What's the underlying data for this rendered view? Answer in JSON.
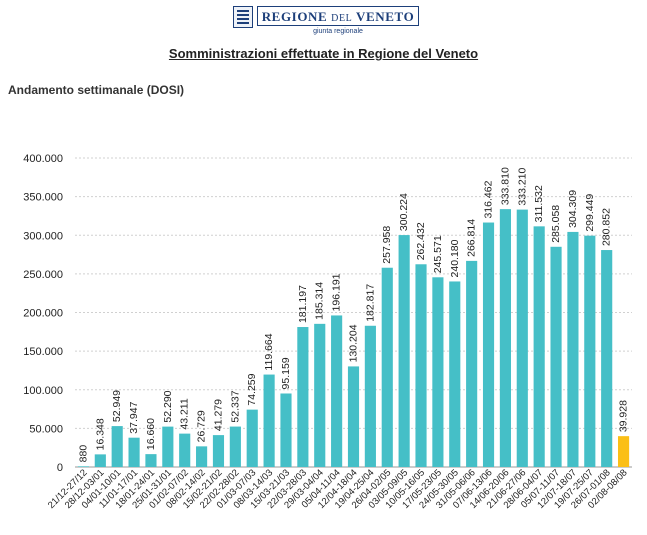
{
  "header": {
    "logo_name_main": "REGIONE",
    "logo_name_small": "DEL",
    "logo_name_end": "VENETO",
    "logo_subtitle": "giunta regionale",
    "page_title": "Somministrazioni effettuate in  Regione del Veneto"
  },
  "section_title": "Andamento settimanale (DOSI)",
  "colors": {
    "bar": "#45bfc7",
    "highlight": "#fbbf16",
    "grid": "#d0d0d0"
  },
  "chart_data": {
    "type": "bar",
    "title": "Andamento settimanale (DOSI)",
    "xlabel": "",
    "ylabel": "",
    "ylim": [
      0,
      400000
    ],
    "yticks": [
      0,
      50000,
      100000,
      150000,
      200000,
      250000,
      300000,
      350000,
      400000
    ],
    "ytick_labels": [
      "0",
      "50.000",
      "100.000",
      "150.000",
      "200.000",
      "250.000",
      "300.000",
      "350.000",
      "400.000"
    ],
    "grid": true,
    "categories": [
      "21/12-27/12",
      "28/12-03/01",
      "04/01-10/01",
      "11/01-17/01",
      "18/01-24/01",
      "25/01-31/01",
      "01/02-07/02",
      "08/02-14/02",
      "15/02-21/02",
      "22/02-28/02",
      "01/03-07/03",
      "08/03-14/03",
      "15/03-21/03",
      "22/03-28/03",
      "29/03-04/04",
      "05/04-11/04",
      "12/04-18/04",
      "19/04-25/04",
      "26/04-02/05",
      "03/05-09/05",
      "10/05-16/05",
      "17/05-23/05",
      "24/05-30/05",
      "31/05-06/06",
      "07/06-13/06",
      "14/06-20/06",
      "21/06-27/06",
      "28/06-04/07",
      "05/07-11/07",
      "12/07-18/07",
      "19/07-25/07",
      "26/07-01/08",
      "02/08-08/08"
    ],
    "values": [
      880,
      16348,
      52949,
      37947,
      16660,
      52290,
      43211,
      26729,
      41279,
      52337,
      74259,
      119664,
      95159,
      181197,
      185314,
      196191,
      130204,
      182817,
      257958,
      300224,
      262432,
      245571,
      240180,
      266814,
      316462,
      333810,
      333210,
      311532,
      285058,
      304309,
      299449,
      280852,
      39928
    ],
    "value_labels": [
      "880",
      "16.348",
      "52.949",
      "37.947",
      "16.660",
      "52.290",
      "43.211",
      "26.729",
      "41.279",
      "52.337",
      "74.259",
      "119.664",
      "95.159",
      "181.197",
      "185.314",
      "196.191",
      "130.204",
      "182.817",
      "257.958",
      "300.224",
      "262.432",
      "245.571",
      "240.180",
      "266.814",
      "316.462",
      "333.810",
      "333.210",
      "311.532",
      "285.058",
      "304.309",
      "299.449",
      "280.852",
      "39.928"
    ],
    "highlight_last": true
  }
}
